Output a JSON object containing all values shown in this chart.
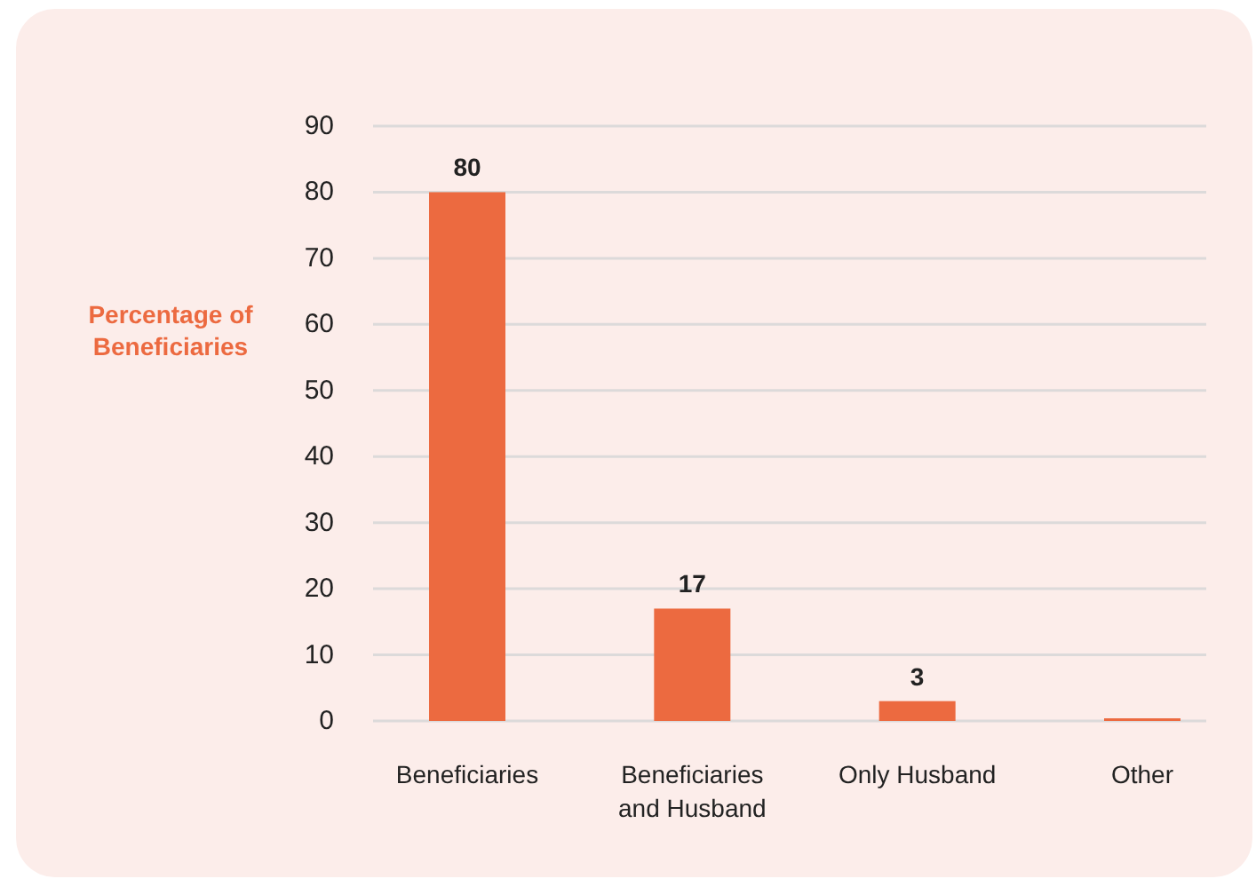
{
  "chart_data": {
    "type": "bar",
    "ylabel": "Percentage of Beneficiaries",
    "categories": [
      "Beneficiaries",
      "Beneficiaries and Husband",
      "Only Husband",
      "Other"
    ],
    "values": [
      80,
      17,
      3,
      0.4
    ],
    "color": "#ec6a40",
    "value_labels": [
      "80",
      "17",
      "3",
      null
    ],
    "ylim": [
      0,
      90
    ],
    "yticks": [
      0,
      10,
      20,
      30,
      40,
      50,
      60,
      70,
      80,
      90
    ],
    "grid": "y"
  }
}
